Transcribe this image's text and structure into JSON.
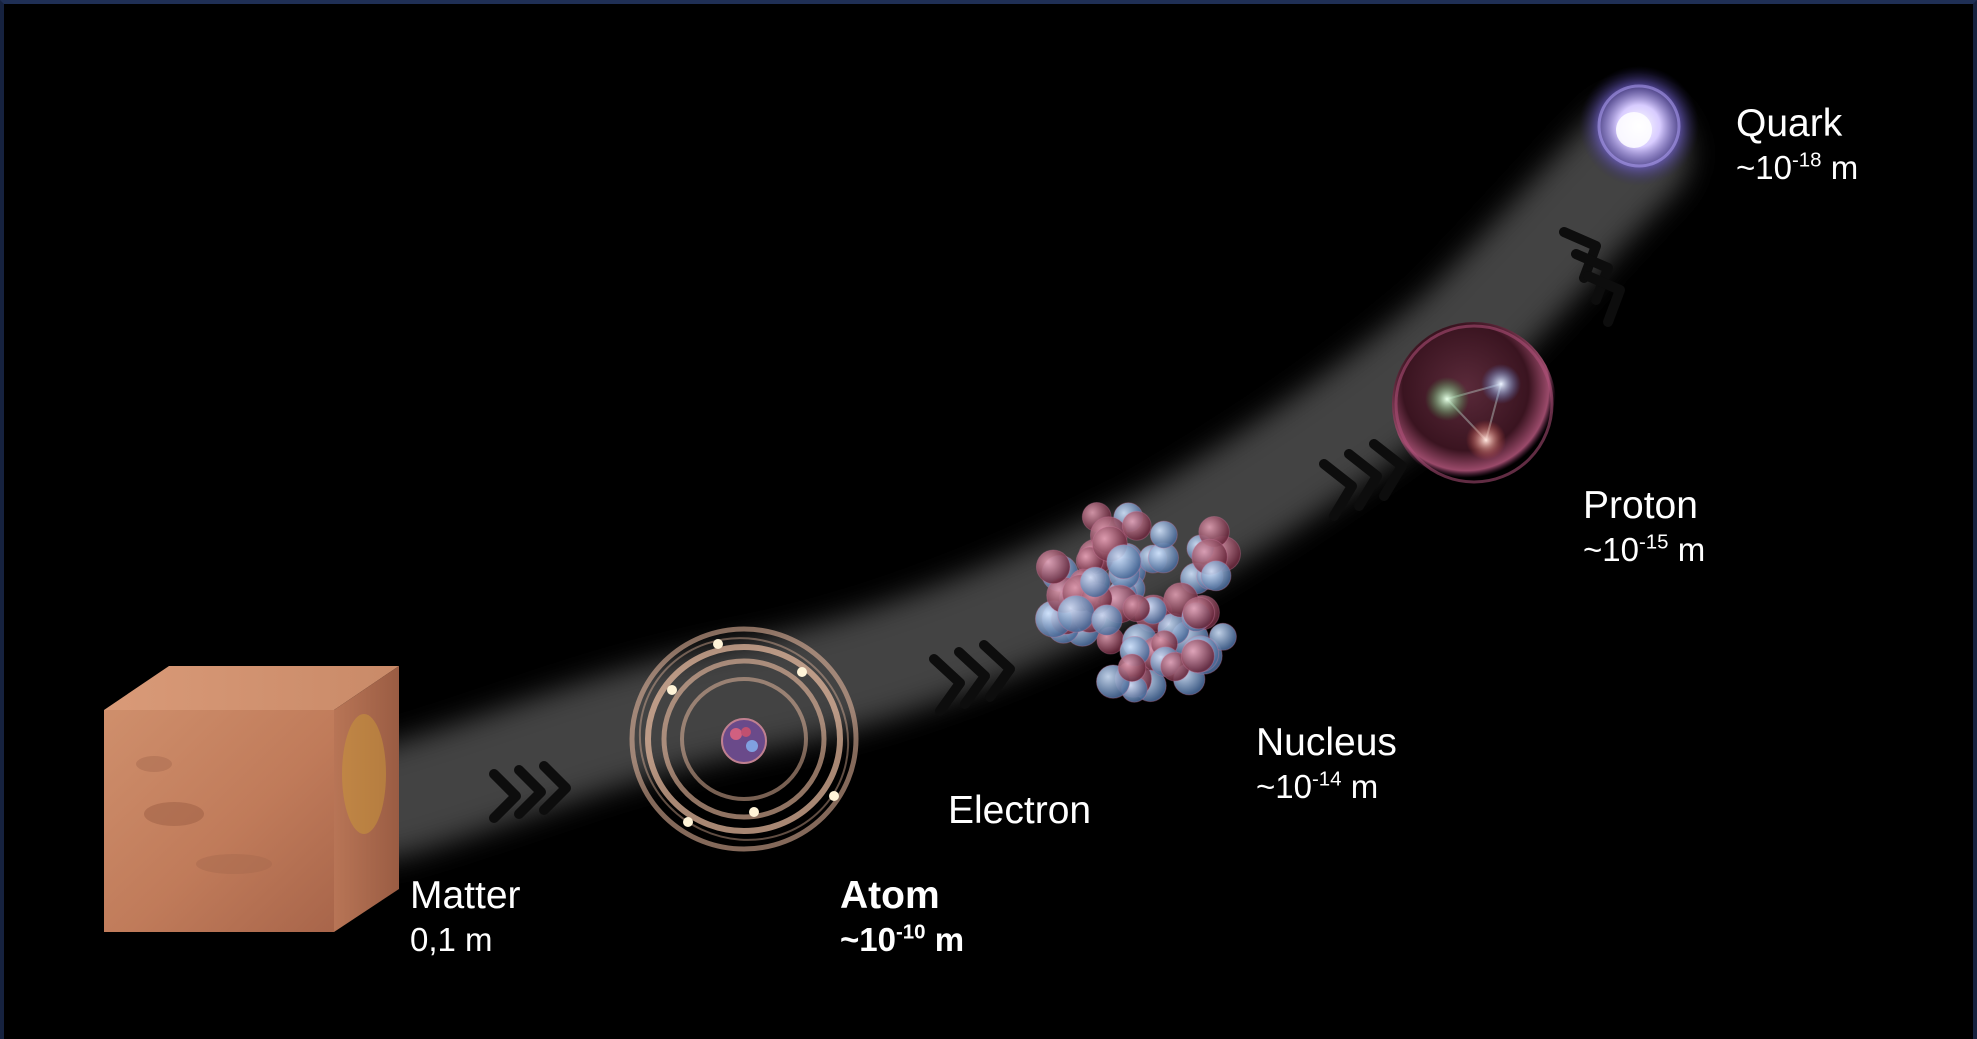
{
  "items": [
    {
      "name": "Matter",
      "size_prefix": "0,1 m",
      "size_exp": "",
      "size_unit": ""
    },
    {
      "name": "Atom",
      "size_prefix": "~10",
      "size_exp": "-10",
      "size_unit": " m"
    },
    {
      "name": "Electron",
      "size_prefix": "",
      "size_exp": "",
      "size_unit": ""
    },
    {
      "name": "Nucleus",
      "size_prefix": "~10",
      "size_exp": "-14",
      "size_unit": " m"
    },
    {
      "name": "Proton",
      "size_prefix": "~10",
      "size_exp": "-15",
      "size_unit": " m"
    },
    {
      "name": "Quark",
      "size_prefix": "~10",
      "size_exp": "-18",
      "size_unit": " m"
    }
  ],
  "colors": {
    "background": "#000000",
    "frame": "#1f2f55",
    "cube": "#c2815f",
    "orbit": "#f0c0a4",
    "nucleus_red": "#b0607a",
    "nucleus_blue": "#8fb0d8",
    "quark_glow": "#c8b8ff"
  }
}
